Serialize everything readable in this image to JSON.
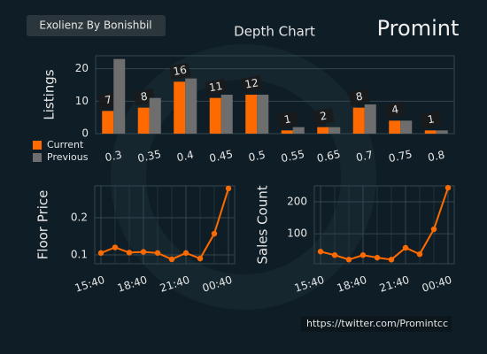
{
  "header": {
    "badge": "Exolienz By Bonishbil",
    "logo": "Promint"
  },
  "footer": {
    "link": "https://twitter.com/Promintcc"
  },
  "chart_data": [
    {
      "type": "bar",
      "title": "Depth Chart",
      "ylabel": "Listings",
      "categories": [
        "0.3",
        "0.35",
        "0.4",
        "0.45",
        "0.5",
        "0.55",
        "0.65",
        "0.7",
        "0.75",
        "0.8"
      ],
      "series": [
        {
          "name": "Current",
          "color": "#ff6a00",
          "values": [
            7,
            8,
            16,
            11,
            12,
            1,
            2,
            8,
            4,
            1
          ]
        },
        {
          "name": "Previous",
          "color": "#6e6e6e",
          "values": [
            23,
            11,
            17,
            12,
            12,
            2,
            2,
            9,
            4,
            1
          ]
        }
      ],
      "ylim": [
        0,
        24
      ],
      "yticks": [
        0,
        10,
        20
      ],
      "grid": true,
      "legend": "lower left"
    },
    {
      "type": "line",
      "ylabel": "Floor Price",
      "categories": [
        "15:40",
        null,
        null,
        "18:40",
        null,
        null,
        "21:40",
        null,
        null,
        "00:40"
      ],
      "values": [
        0.105,
        0.12,
        0.106,
        0.108,
        0.105,
        0.088,
        0.105,
        0.09,
        0.157,
        0.279
      ],
      "color": "#ff6a00",
      "ylim": [
        0.076,
        0.286
      ],
      "yticks": [
        0.1,
        0.2
      ],
      "grid": true
    },
    {
      "type": "line",
      "ylabel": "Sales Count",
      "categories": [
        "15:40",
        null,
        null,
        "18:40",
        null,
        null,
        "21:40",
        null,
        null,
        "00:40"
      ],
      "values": [
        44,
        33,
        19,
        33,
        25,
        19,
        56,
        36,
        114,
        244
      ],
      "color": "#ff6a00",
      "ylim": [
        6,
        250
      ],
      "yticks": [
        100,
        200
      ],
      "grid": true
    }
  ]
}
